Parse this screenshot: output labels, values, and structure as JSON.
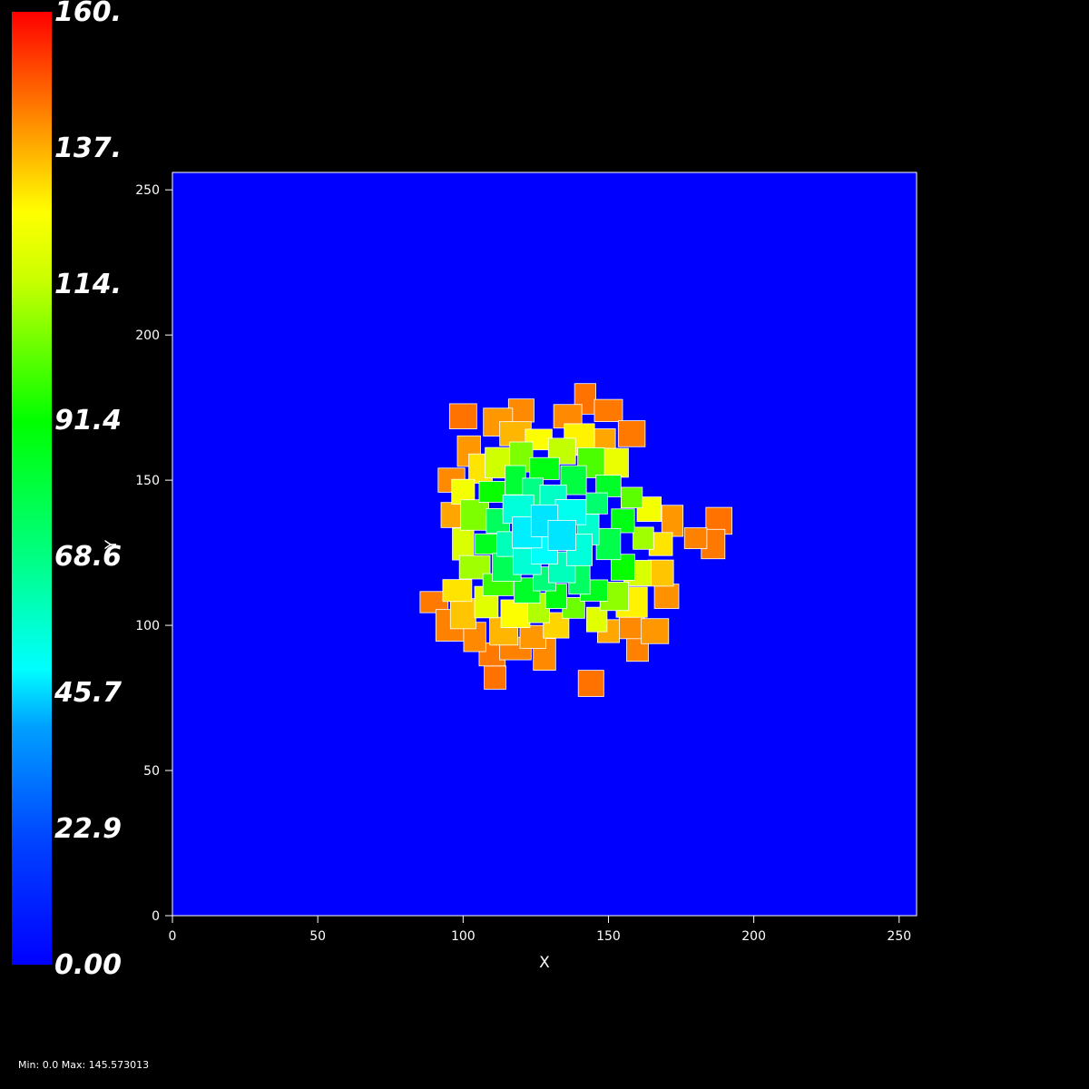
{
  "colors": {
    "background": "#000000",
    "field": "#0000ff",
    "frame": "#ffffff"
  },
  "colorbar": {
    "labels": [
      "160.",
      "137.",
      "114.",
      "91.4",
      "68.6",
      "45.7",
      "22.9",
      "0.00"
    ],
    "range": [
      0,
      160
    ],
    "colormap": "rainbow (blue-cyan-green-yellow-red)"
  },
  "stats": "Min: 0.0 Max: 145.573013",
  "chart_data": {
    "type": "heatmap",
    "xlabel": "X",
    "ylabel": "Y",
    "xlim": [
      0,
      256
    ],
    "ylim": [
      0,
      256
    ],
    "x_ticks": [
      "0",
      "50",
      "100",
      "150",
      "200",
      "250"
    ],
    "y_ticks": [
      "0",
      "50",
      "100",
      "150",
      "200",
      "250"
    ],
    "value_range": [
      0,
      160
    ],
    "min": 0.0,
    "max": 145.573013,
    "background_value": 0,
    "cluster": {
      "center": [
        135,
        130
      ],
      "description": "cellular cluster; values increase radially from ~45 near center to ~145 at the rim"
    },
    "cells": [
      {
        "x": 128,
        "y": 136,
        "v": 47
      },
      {
        "x": 122,
        "y": 132,
        "v": 48
      },
      {
        "x": 134,
        "y": 131,
        "v": 47
      },
      {
        "x": 128,
        "y": 126,
        "v": 50
      },
      {
        "x": 137,
        "y": 139,
        "v": 52
      },
      {
        "x": 119,
        "y": 140,
        "v": 55
      },
      {
        "x": 140,
        "y": 126,
        "v": 55
      },
      {
        "x": 122,
        "y": 122,
        "v": 56
      },
      {
        "x": 131,
        "y": 144,
        "v": 58
      },
      {
        "x": 143,
        "y": 133,
        "v": 57
      },
      {
        "x": 116,
        "y": 128,
        "v": 60
      },
      {
        "x": 134,
        "y": 120,
        "v": 60
      },
      {
        "x": 124,
        "y": 146,
        "v": 68
      },
      {
        "x": 146,
        "y": 142,
        "v": 72
      },
      {
        "x": 112,
        "y": 136,
        "v": 75
      },
      {
        "x": 140,
        "y": 116,
        "v": 74
      },
      {
        "x": 115,
        "y": 120,
        "v": 76
      },
      {
        "x": 128,
        "y": 116,
        "v": 70
      },
      {
        "x": 150,
        "y": 128,
        "v": 78
      },
      {
        "x": 138,
        "y": 150,
        "v": 80
      },
      {
        "x": 118,
        "y": 150,
        "v": 82
      },
      {
        "x": 150,
        "y": 148,
        "v": 84
      },
      {
        "x": 108,
        "y": 128,
        "v": 86
      },
      {
        "x": 145,
        "y": 112,
        "v": 86
      },
      {
        "x": 122,
        "y": 112,
        "v": 84
      },
      {
        "x": 132,
        "y": 110,
        "v": 88
      },
      {
        "x": 155,
        "y": 136,
        "v": 88
      },
      {
        "x": 128,
        "y": 154,
        "v": 88
      },
      {
        "x": 110,
        "y": 146,
        "v": 92
      },
      {
        "x": 155,
        "y": 120,
        "v": 92
      },
      {
        "x": 112,
        "y": 114,
        "v": 98
      },
      {
        "x": 144,
        "y": 156,
        "v": 100
      },
      {
        "x": 158,
        "y": 144,
        "v": 102
      },
      {
        "x": 104,
        "y": 138,
        "v": 106
      },
      {
        "x": 138,
        "y": 106,
        "v": 104
      },
      {
        "x": 120,
        "y": 158,
        "v": 106
      },
      {
        "x": 152,
        "y": 110,
        "v": 108
      },
      {
        "x": 104,
        "y": 120,
        "v": 110
      },
      {
        "x": 162,
        "y": 130,
        "v": 110
      },
      {
        "x": 126,
        "y": 106,
        "v": 112
      },
      {
        "x": 134,
        "y": 160,
        "v": 114
      },
      {
        "x": 112,
        "y": 156,
        "v": 116
      },
      {
        "x": 160,
        "y": 118,
        "v": 118
      },
      {
        "x": 100,
        "y": 128,
        "v": 118
      },
      {
        "x": 108,
        "y": 108,
        "v": 120
      },
      {
        "x": 146,
        "y": 102,
        "v": 120
      },
      {
        "x": 152,
        "y": 156,
        "v": 122
      },
      {
        "x": 164,
        "y": 140,
        "v": 124
      },
      {
        "x": 100,
        "y": 146,
        "v": 124
      },
      {
        "x": 118,
        "y": 104,
        "v": 126
      },
      {
        "x": 126,
        "y": 164,
        "v": 126
      },
      {
        "x": 140,
        "y": 164,
        "v": 128
      },
      {
        "x": 158,
        "y": 108,
        "v": 128
      },
      {
        "x": 168,
        "y": 128,
        "v": 130
      },
      {
        "x": 98,
        "y": 112,
        "v": 130
      },
      {
        "x": 106,
        "y": 154,
        "v": 130
      },
      {
        "x": 132,
        "y": 100,
        "v": 132
      },
      {
        "x": 168,
        "y": 118,
        "v": 134
      },
      {
        "x": 100,
        "y": 104,
        "v": 134
      },
      {
        "x": 114,
        "y": 98,
        "v": 136
      },
      {
        "x": 150,
        "y": 98,
        "v": 138
      },
      {
        "x": 118,
        "y": 166,
        "v": 136
      },
      {
        "x": 148,
        "y": 164,
        "v": 138
      },
      {
        "x": 96,
        "y": 138,
        "v": 138
      },
      {
        "x": 172,
        "y": 136,
        "v": 140
      },
      {
        "x": 102,
        "y": 160,
        "v": 140
      },
      {
        "x": 124,
        "y": 96,
        "v": 140
      },
      {
        "x": 158,
        "y": 100,
        "v": 142
      },
      {
        "x": 136,
        "y": 172,
        "v": 142
      },
      {
        "x": 180,
        "y": 130,
        "v": 143
      },
      {
        "x": 188,
        "y": 136,
        "v": 145
      },
      {
        "x": 186,
        "y": 128,
        "v": 144
      },
      {
        "x": 90,
        "y": 108,
        "v": 144
      },
      {
        "x": 96,
        "y": 100,
        "v": 143
      },
      {
        "x": 110,
        "y": 90,
        "v": 144
      },
      {
        "x": 111,
        "y": 82,
        "v": 145
      },
      {
        "x": 144,
        "y": 80,
        "v": 145
      },
      {
        "x": 128,
        "y": 90,
        "v": 142
      },
      {
        "x": 160,
        "y": 92,
        "v": 143
      },
      {
        "x": 142,
        "y": 178,
        "v": 145
      },
      {
        "x": 150,
        "y": 174,
        "v": 144
      },
      {
        "x": 100,
        "y": 172,
        "v": 145
      },
      {
        "x": 120,
        "y": 174,
        "v": 142
      },
      {
        "x": 158,
        "y": 166,
        "v": 144
      },
      {
        "x": 96,
        "y": 150,
        "v": 142
      },
      {
        "x": 170,
        "y": 110,
        "v": 141
      },
      {
        "x": 118,
        "y": 92,
        "v": 143
      },
      {
        "x": 104,
        "y": 96,
        "v": 142
      },
      {
        "x": 166,
        "y": 98,
        "v": 140
      },
      {
        "x": 112,
        "y": 170,
        "v": 140
      }
    ]
  }
}
